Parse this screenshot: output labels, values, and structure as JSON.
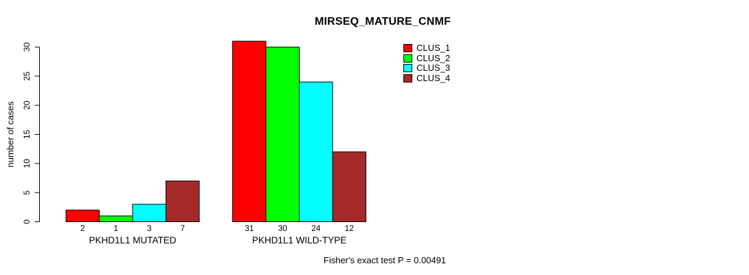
{
  "figure": {
    "background": "#FFFFFF",
    "text_color": "#000000"
  },
  "chart_data": {
    "type": "bar",
    "title": "MIRSEQ_MATURE_CNMF",
    "ylabel": "number of cases",
    "xlabel": "",
    "ylim": [
      0,
      31
    ],
    "yticks": [
      0,
      5,
      10,
      15,
      20,
      25,
      30
    ],
    "grid": false,
    "legend_position": "top-right",
    "categories": [
      "PKHD1L1 MUTATED",
      "PKHD1L1 WILD-TYPE"
    ],
    "series": [
      {
        "name": "CLUS_1",
        "color": "#FF0000",
        "values": [
          2,
          31
        ]
      },
      {
        "name": "CLUS_2",
        "color": "#00FF00",
        "values": [
          1,
          30
        ]
      },
      {
        "name": "CLUS_3",
        "color": "#00FFFF",
        "values": [
          3,
          24
        ]
      },
      {
        "name": "CLUS_4",
        "color": "#A52A2A",
        "values": [
          7,
          12
        ]
      }
    ],
    "show_values_under_bars": true,
    "footnote": "Fisher's exact test P = 0.00491"
  }
}
